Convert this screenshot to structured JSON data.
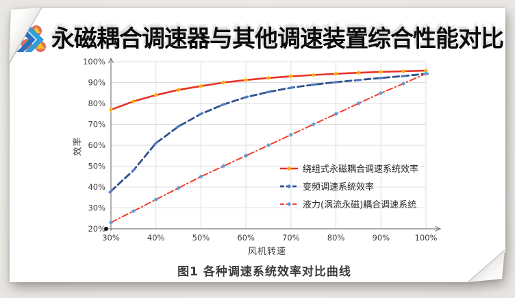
{
  "page": {
    "background": "#eceae6",
    "card_background": "#ffffff"
  },
  "header": {
    "title": "永磁耦合调速器与其他调速装置综合性能对比",
    "logo": "double-chevron-brand-icon",
    "logo_colors": {
      "chevron_front": "#2f9fd8",
      "chevron_back": "#2f6fc0",
      "dots": [
        "#d9534f",
        "#6cb33f",
        "#f5c518"
      ]
    }
  },
  "chart_data": {
    "type": "line",
    "title": "",
    "xlabel": "风机转速",
    "ylabel": "效率",
    "xlim": [
      30,
      100
    ],
    "ylim": [
      20,
      100
    ],
    "grid": true,
    "legend_position": "inside-right-middle",
    "x_tick_labels": [
      "30%",
      "40%",
      "50%",
      "60%",
      "70%",
      "80%",
      "90%",
      "100%"
    ],
    "y_tick_labels": [
      "20%",
      "30%",
      "40%",
      "50%",
      "60%",
      "70%",
      "80%",
      "90%",
      "100%"
    ],
    "x": [
      30,
      35,
      40,
      45,
      50,
      55,
      60,
      65,
      70,
      75,
      80,
      85,
      90,
      95,
      100
    ],
    "series": [
      {
        "name": "绕组式永磁耦合调速系统效率",
        "line_color": "#e63329",
        "marker_color": "#ffaf00",
        "line_style": "solid",
        "marker": "diamond",
        "values": [
          77,
          81,
          84,
          86.5,
          88.3,
          90,
          91.2,
          92.2,
          93,
          93.6,
          94.2,
          94.7,
          95.1,
          95.4,
          95.7
        ]
      },
      {
        "name": "变频调速系统效率",
        "line_color": "#30508f",
        "marker_color": "#4f7dc3",
        "line_style": "dashed",
        "marker": "dash",
        "values": [
          38,
          48,
          61,
          69,
          75,
          79.5,
          83,
          85.5,
          87.5,
          89,
          90.2,
          91.2,
          92.2,
          93.1,
          94.2
        ]
      },
      {
        "name": "液力(涡流永磁)耦合调速系统",
        "line_color": "#f23b2f",
        "marker_color": "#5ba0d8",
        "line_style": "dashdot",
        "marker": "diamond",
        "values": [
          23,
          28.5,
          34,
          39.5,
          45,
          50,
          55,
          60,
          65,
          70,
          75,
          80,
          85,
          89.5,
          94.3
        ]
      }
    ],
    "origin_dot": {
      "x": 30,
      "y": 20,
      "color": "#111111"
    },
    "grid_color": "#dcdcdc",
    "axis_color": "#7a7a7a",
    "tick_color": "#3d3d3d"
  },
  "caption": "图1 各种调速系统效率对比曲线"
}
